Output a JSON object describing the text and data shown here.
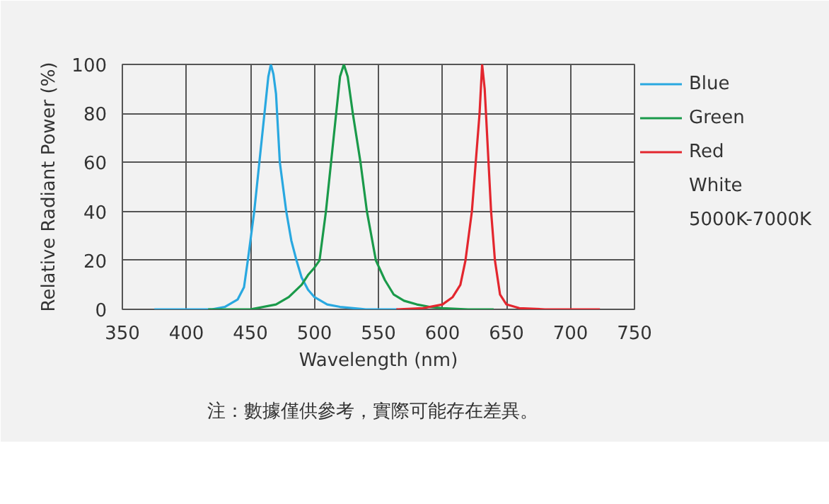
{
  "chart_data": {
    "type": "line",
    "xlabel": "Wavelength (nm)",
    "ylabel": "Relative Radiant Power (%)",
    "xlim": [
      350,
      750
    ],
    "xticks": [
      350,
      400,
      450,
      500,
      550,
      600,
      650,
      700,
      750
    ],
    "ylim": [
      0,
      100
    ],
    "yticks": [
      0,
      20,
      40,
      60,
      80,
      100
    ],
    "grid": true,
    "legend": "right",
    "marker": "none",
    "line_style": "solid",
    "series": [
      {
        "name": "Blue",
        "color": "#29a8e0",
        "x": [
          375,
          420,
          430,
          440,
          445,
          448,
          453,
          457,
          461,
          464,
          466,
          468,
          470,
          473,
          476,
          478,
          482,
          486,
          490,
          495,
          500,
          510,
          520,
          540,
          565
        ],
        "values": [
          0,
          0,
          1,
          4,
          9,
          20,
          40,
          60,
          80,
          95,
          100,
          96,
          88,
          60,
          48,
          40,
          28,
          20,
          13,
          8,
          5,
          2,
          1,
          0,
          0
        ]
      },
      {
        "name": "Green",
        "color": "#1a9a4a",
        "x": [
          417,
          450,
          470,
          480,
          490,
          495,
          500,
          504,
          509,
          513,
          517,
          520,
          523,
          526,
          530,
          536,
          541,
          548,
          555,
          562,
          570,
          580,
          590,
          600,
          620,
          640
        ],
        "values": [
          0,
          0,
          2,
          5,
          10,
          14,
          17,
          20,
          40,
          60,
          80,
          95,
          100,
          95,
          80,
          60,
          40,
          20,
          12,
          6,
          3.5,
          2,
          1,
          0.5,
          0,
          0
        ]
      },
      {
        "name": "Red",
        "color": "#e3262e",
        "x": [
          564,
          585,
          600,
          608,
          614,
          618,
          623,
          626,
          629,
          631,
          633,
          634,
          636,
          638,
          641,
          645,
          650,
          660,
          680,
          723
        ],
        "values": [
          0,
          0.5,
          2,
          5,
          10,
          20,
          40,
          60,
          80,
          100,
          90,
          80,
          60,
          40,
          20,
          6,
          2,
          0.5,
          0,
          0
        ]
      }
    ],
    "annotations": [
      "White",
      "5000K-7000K",
      "注：數據僅供參考，實際可能存在差異。"
    ]
  }
}
